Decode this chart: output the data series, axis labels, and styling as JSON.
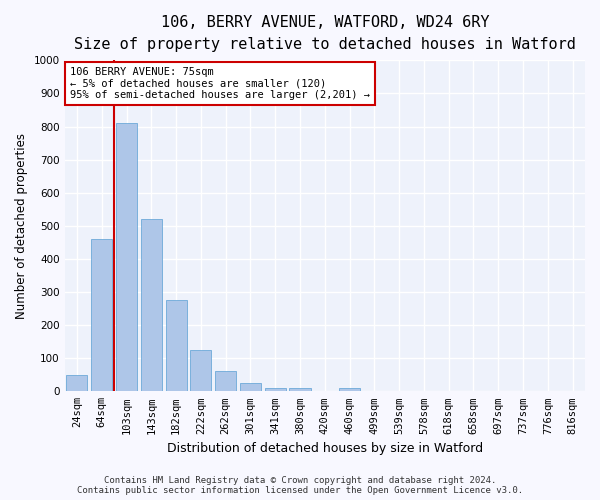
{
  "title_line1": "106, BERRY AVENUE, WATFORD, WD24 6RY",
  "title_line2": "Size of property relative to detached houses in Watford",
  "xlabel": "Distribution of detached houses by size in Watford",
  "ylabel": "Number of detached properties",
  "categories": [
    "24sqm",
    "64sqm",
    "103sqm",
    "143sqm",
    "182sqm",
    "222sqm",
    "262sqm",
    "301sqm",
    "341sqm",
    "380sqm",
    "420sqm",
    "460sqm",
    "499sqm",
    "539sqm",
    "578sqm",
    "618sqm",
    "658sqm",
    "697sqm",
    "737sqm",
    "776sqm",
    "816sqm"
  ],
  "values": [
    50,
    460,
    810,
    520,
    275,
    125,
    60,
    25,
    10,
    10,
    0,
    10,
    0,
    0,
    0,
    0,
    0,
    0,
    0,
    0,
    0
  ],
  "bar_color": "#aec6e8",
  "bar_edge_color": "#5a9fd4",
  "vline_x_index": 1.5,
  "vline_color": "#cc0000",
  "annotation_text": "106 BERRY AVENUE: 75sqm\n← 5% of detached houses are smaller (120)\n95% of semi-detached houses are larger (2,201) →",
  "annotation_box_color": "#ffffff",
  "annotation_box_edge": "#cc0000",
  "ylim": [
    0,
    1000
  ],
  "yticks": [
    0,
    100,
    200,
    300,
    400,
    500,
    600,
    700,
    800,
    900,
    1000
  ],
  "background_color": "#eef2fb",
  "grid_color": "#ffffff",
  "footer_line1": "Contains HM Land Registry data © Crown copyright and database right 2024.",
  "footer_line2": "Contains public sector information licensed under the Open Government Licence v3.0.",
  "title_fontsize": 11,
  "subtitle_fontsize": 9.5,
  "xlabel_fontsize": 9,
  "ylabel_fontsize": 8.5,
  "tick_fontsize": 7.5,
  "annotation_fontsize": 7.5,
  "footer_fontsize": 6.5
}
